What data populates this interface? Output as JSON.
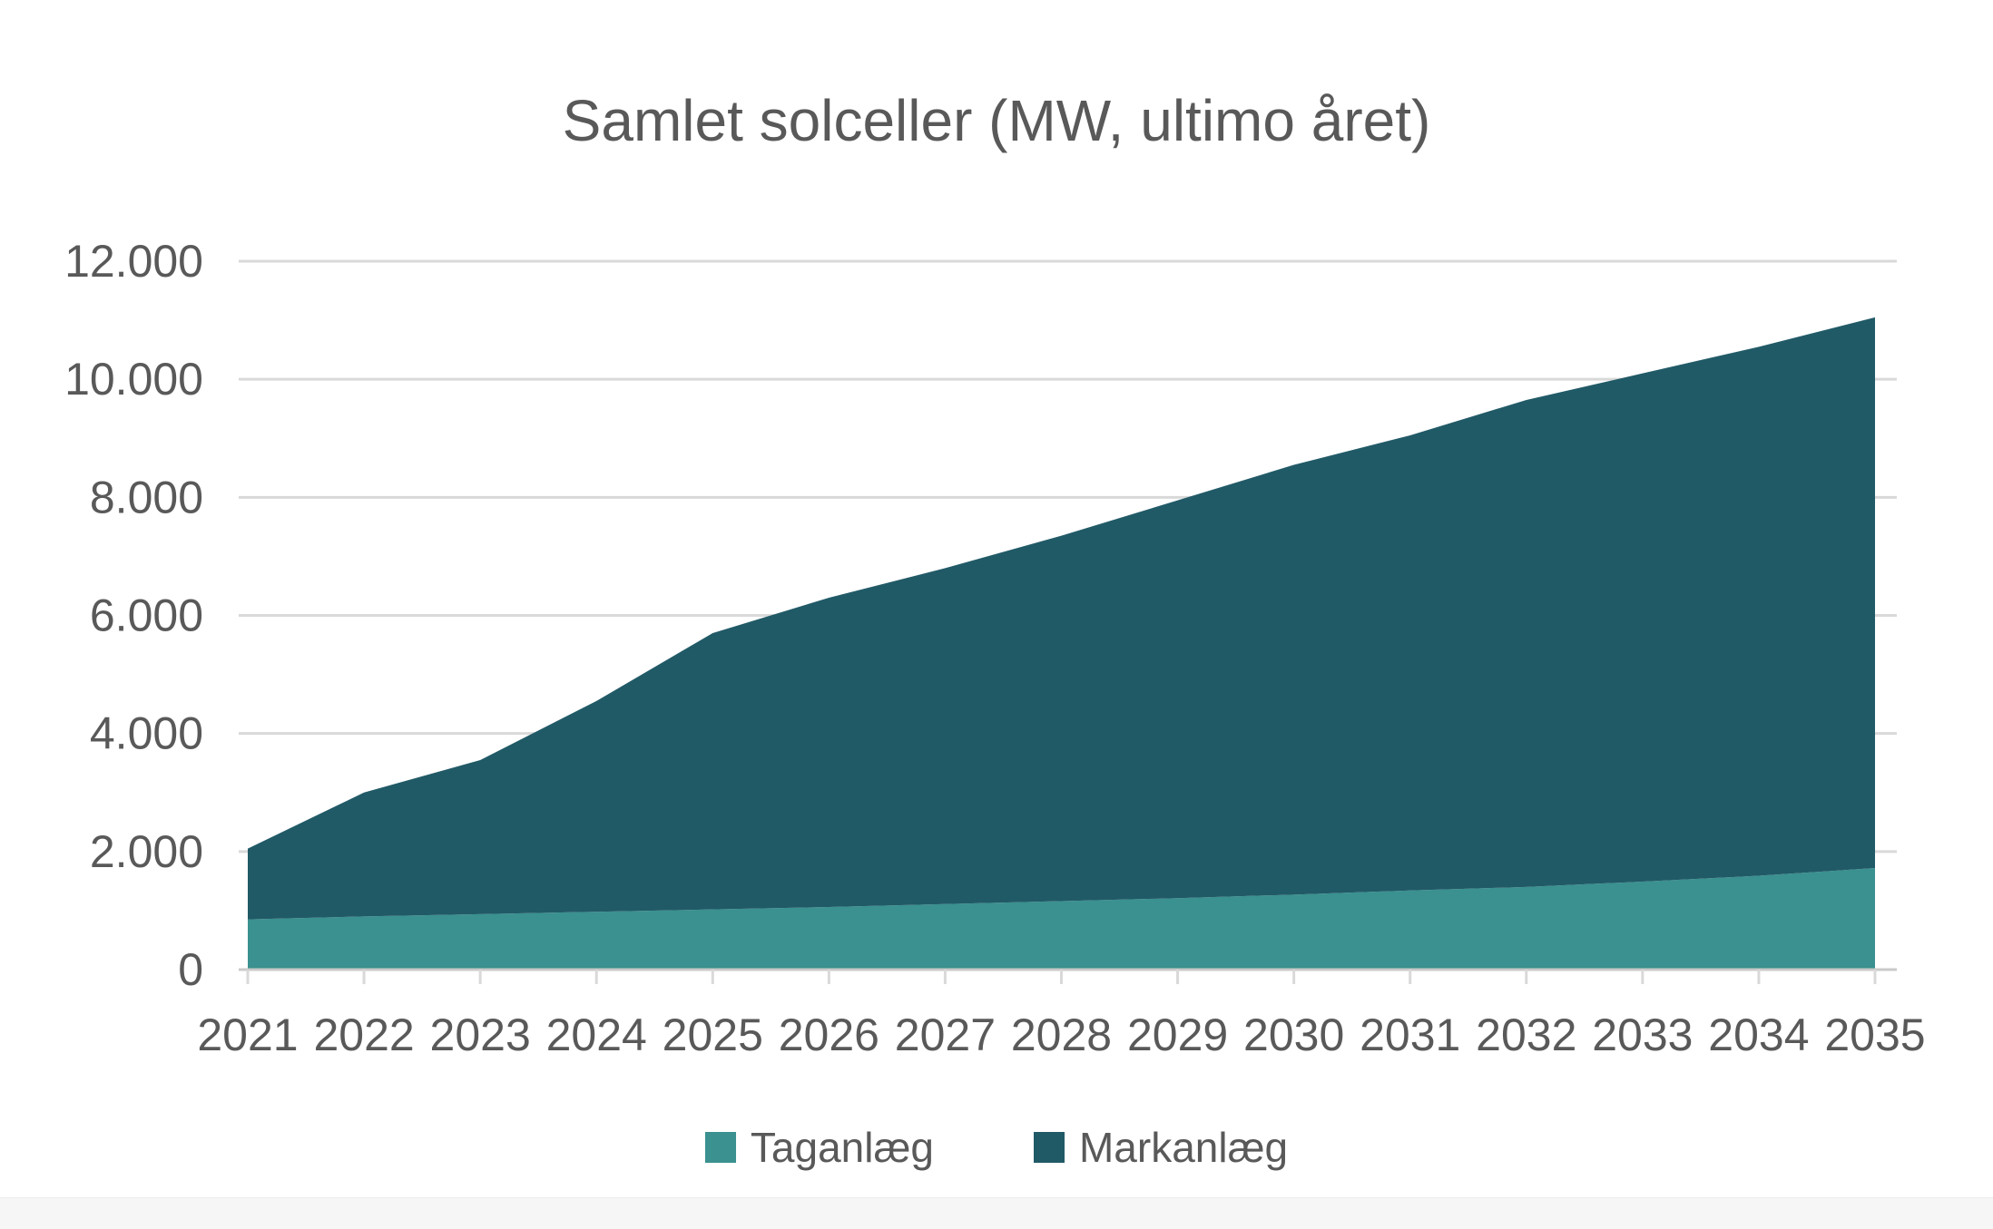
{
  "title": "Samlet solceller (MW, ultimo året)",
  "chart_data": {
    "type": "area",
    "stacked": true,
    "title": "Samlet solceller (MW, ultimo året)",
    "categories": [
      "2021",
      "2022",
      "2023",
      "2024",
      "2025",
      "2026",
      "2027",
      "2028",
      "2029",
      "2030",
      "2031",
      "2032",
      "2033",
      "2034",
      "2035"
    ],
    "series": [
      {
        "name": "Taganlæg",
        "color": "#3a918f",
        "values": [
          850,
          900,
          940,
          980,
          1020,
          1060,
          1110,
          1160,
          1210,
          1270,
          1340,
          1400,
          1490,
          1590,
          1720
        ]
      },
      {
        "name": "Markanlæg",
        "color": "#215a67",
        "values": [
          1200,
          2100,
          2610,
          3570,
          4680,
          5240,
          5690,
          6190,
          6740,
          7280,
          7710,
          8250,
          8610,
          8960,
          9330
        ]
      }
    ],
    "totals": [
      2050,
      3000,
      3550,
      4550,
      5700,
      6300,
      6800,
      7350,
      7950,
      8550,
      9050,
      9650,
      10100,
      10550,
      11050
    ],
    "y_axis": {
      "min": 0,
      "max": 12000,
      "step": 2000,
      "tick_labels": [
        "0",
        "2.000",
        "4.000",
        "6.000",
        "8.000",
        "10.000",
        "12.000"
      ]
    },
    "x_axis": {
      "label_color": "#595959"
    },
    "grid": true,
    "gridline_color": "#d9d9d9",
    "axis_line_color": "#c9c9c9",
    "legend_position": "bottom"
  },
  "legend": {
    "items": [
      {
        "label": "Taganlæg"
      },
      {
        "label": "Markanlæg"
      }
    ]
  }
}
